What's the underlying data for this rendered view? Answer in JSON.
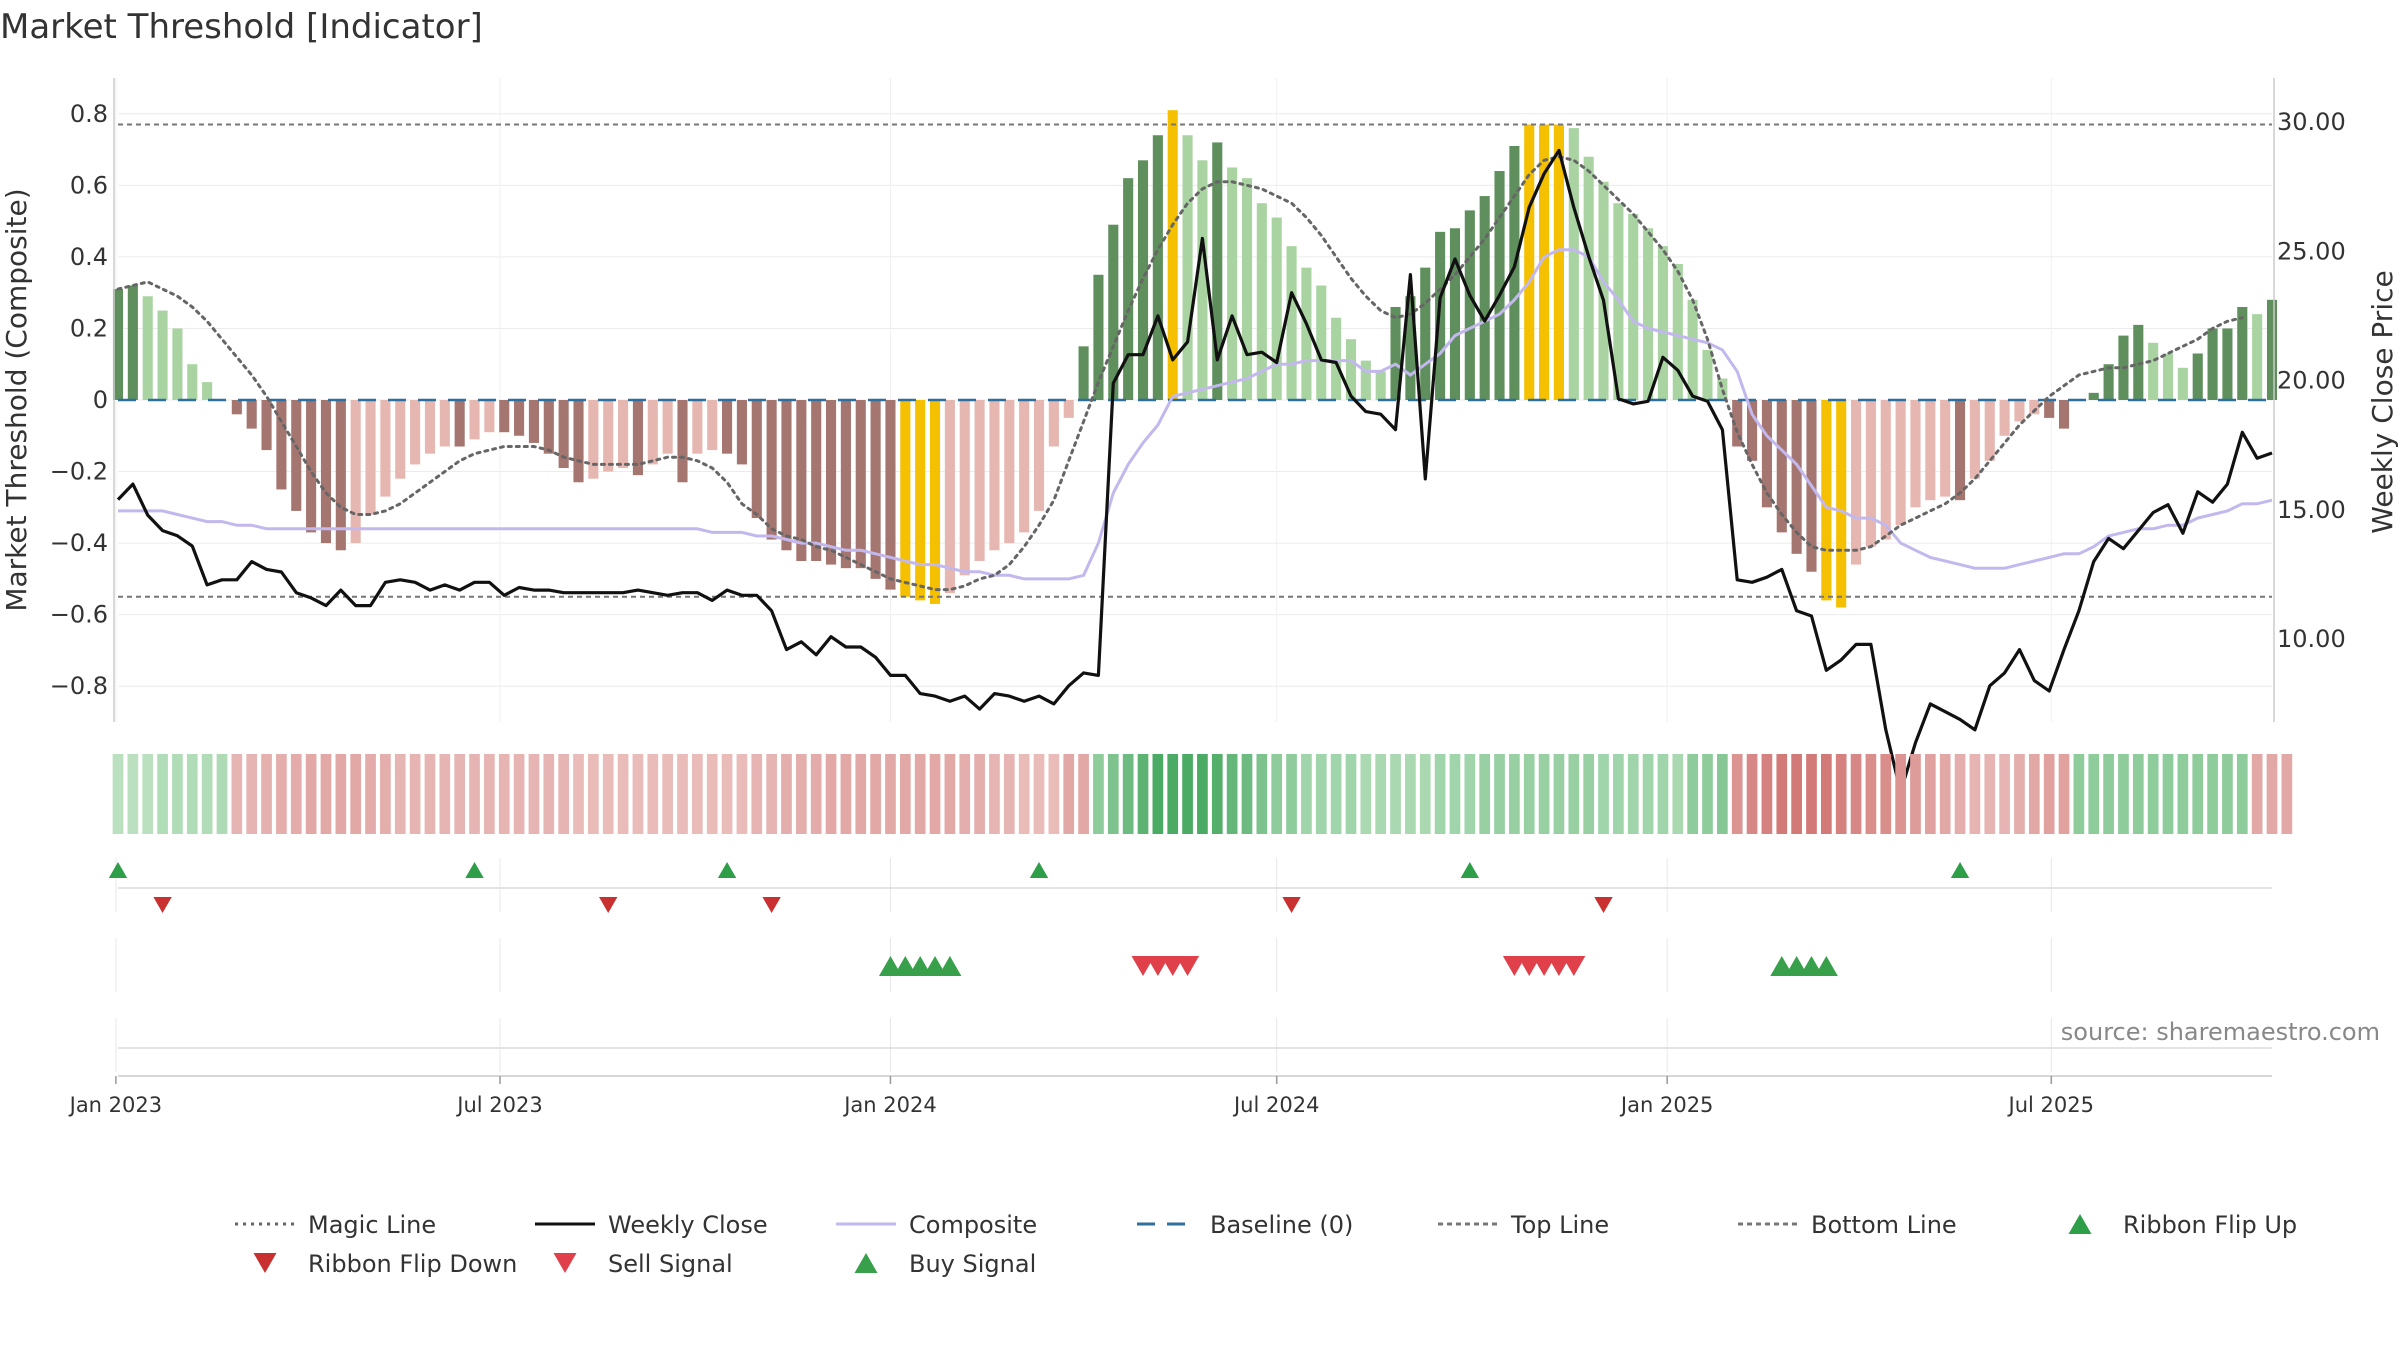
{
  "title": "Market Threshold [Indicator]",
  "source_label": "source: sharemaestro.com",
  "chart_data": {
    "type": "bar",
    "start_date": "2023-01-02",
    "y_left": {
      "label": "Market Threshold (Composite)",
      "ylim": [
        -0.9,
        0.9
      ],
      "ticks": [
        -0.8,
        -0.6,
        -0.4,
        -0.2,
        0,
        0.2,
        0.4,
        0.6,
        0.8
      ],
      "tick_labels": [
        "−0.8",
        "−0.6",
        "−0.4",
        "−0.2",
        "0",
        "0.2",
        "0.4",
        "0.6",
        "0.8"
      ]
    },
    "y_right": {
      "label": "Weekly Close Price",
      "ylim": [
        6.8,
        31.7
      ],
      "ticks": [
        10,
        15,
        20,
        25,
        30
      ],
      "tick_labels": [
        "10.00",
        "15.00",
        "20.00",
        "25.00",
        "30.00"
      ]
    },
    "x_ticks": [
      {
        "date": "2023-01-01",
        "label": "Jan 2023"
      },
      {
        "date": "2023-07-01",
        "label": "Jul 2023"
      },
      {
        "date": "2024-01-01",
        "label": "Jan 2024"
      },
      {
        "date": "2024-07-01",
        "label": "Jul 2024"
      },
      {
        "date": "2025-01-01",
        "label": "Jan 2025"
      },
      {
        "date": "2025-07-01",
        "label": "Jul 2025"
      }
    ],
    "top_line": 0.77,
    "bottom_line": -0.55,
    "grid": true,
    "composite_bars": [
      0.31,
      0.32,
      0.29,
      0.25,
      0.2,
      0.1,
      0.05,
      0,
      -0.04,
      -0.08,
      -0.14,
      -0.25,
      -0.31,
      -0.37,
      -0.4,
      -0.42,
      -0.4,
      -0.32,
      -0.27,
      -0.22,
      -0.18,
      -0.15,
      -0.13,
      -0.13,
      -0.11,
      -0.09,
      -0.09,
      -0.1,
      -0.12,
      -0.15,
      -0.19,
      -0.23,
      -0.22,
      -0.2,
      -0.19,
      -0.21,
      -0.18,
      -0.15,
      -0.23,
      -0.15,
      -0.14,
      -0.15,
      -0.18,
      -0.33,
      -0.39,
      -0.42,
      -0.45,
      -0.45,
      -0.46,
      -0.47,
      -0.47,
      -0.5,
      -0.53,
      -0.55,
      -0.56,
      -0.57,
      -0.54,
      -0.49,
      -0.45,
      -0.42,
      -0.4,
      -0.37,
      -0.31,
      -0.13,
      -0.05,
      0.15,
      0.35,
      0.49,
      0.62,
      0.67,
      0.74,
      0.81,
      0.74,
      0.67,
      0.72,
      0.65,
      0.62,
      0.55,
      0.51,
      0.43,
      0.37,
      0.32,
      0.23,
      0.17,
      0.11,
      0.08,
      0.26,
      0.29,
      0.37,
      0.47,
      0.48,
      0.53,
      0.57,
      0.64,
      0.71,
      0.77,
      0.77,
      0.77,
      0.76,
      0.68,
      0.61,
      0.55,
      0.52,
      0.48,
      0.43,
      0.38,
      0.28,
      0.14,
      0.06,
      -0.13,
      -0.17,
      -0.3,
      -0.37,
      -0.43,
      -0.48,
      -0.56,
      -0.58,
      -0.46,
      -0.41,
      -0.39,
      -0.35,
      -0.3,
      -0.28,
      -0.27,
      -0.28,
      -0.22,
      -0.17,
      -0.1,
      -0.06,
      -0.04,
      -0.05,
      -0.08,
      0,
      0.02,
      0.1,
      0.18,
      0.21,
      0.16,
      0.13,
      0.09,
      0.13,
      0.2,
      0.2,
      0.26,
      0.24,
      0.28
    ],
    "weekly_close": [
      15.4,
      16.0,
      14.8,
      14.2,
      14.0,
      13.6,
      12.1,
      12.3,
      12.3,
      13.0,
      12.7,
      12.6,
      11.8,
      11.6,
      11.3,
      11.9,
      11.3,
      11.3,
      12.2,
      12.3,
      12.2,
      11.9,
      12.1,
      11.9,
      12.2,
      12.2,
      11.7,
      12.0,
      11.9,
      11.9,
      11.8,
      11.8,
      11.8,
      11.8,
      11.8,
      11.9,
      11.8,
      11.7,
      11.8,
      11.8,
      11.5,
      11.9,
      11.7,
      11.7,
      11.1,
      9.6,
      9.9,
      9.4,
      10.1,
      9.7,
      9.7,
      9.3,
      8.6,
      8.6,
      7.9,
      7.8,
      7.6,
      7.8,
      7.3,
      7.9,
      7.8,
      7.6,
      7.8,
      7.5,
      8.2,
      8.7,
      8.6,
      19.9,
      21.0,
      21.0,
      22.5,
      20.8,
      21.5,
      25.5,
      20.8,
      22.5,
      21.0,
      21.1,
      20.7,
      23.4,
      22.2,
      20.8,
      20.7,
      19.4,
      18.8,
      18.7,
      18.1,
      24.1,
      16.2,
      23.2,
      24.7,
      23.3,
      22.3,
      23.3,
      24.4,
      26.7,
      28.0,
      28.9,
      26.7,
      24.8,
      23.1,
      19.3,
      19.1,
      19.2,
      20.9,
      20.4,
      19.4,
      19.2,
      18.1,
      12.3,
      12.2,
      12.4,
      12.7,
      11.1,
      10.9,
      8.8,
      9.2,
      9.8,
      9.8,
      6.5,
      4.1,
      6.0,
      7.5,
      7.2,
      6.9,
      6.5,
      8.2,
      8.7,
      9.6,
      8.4,
      8.0,
      9.6,
      11.1,
      13.0,
      13.9,
      13.5,
      14.2,
      14.9,
      15.2,
      14.1,
      15.7,
      15.3,
      16.0,
      18.0,
      17.0,
      17.2
    ],
    "composite_line": [
      -0.31,
      -0.31,
      -0.31,
      -0.31,
      -0.32,
      -0.33,
      -0.34,
      -0.34,
      -0.35,
      -0.35,
      -0.36,
      -0.36,
      -0.36,
      -0.36,
      -0.36,
      -0.36,
      -0.36,
      -0.36,
      -0.36,
      -0.36,
      -0.36,
      -0.36,
      -0.36,
      -0.36,
      -0.36,
      -0.36,
      -0.36,
      -0.36,
      -0.36,
      -0.36,
      -0.36,
      -0.36,
      -0.36,
      -0.36,
      -0.36,
      -0.36,
      -0.36,
      -0.36,
      -0.36,
      -0.36,
      -0.37,
      -0.37,
      -0.37,
      -0.38,
      -0.38,
      -0.39,
      -0.4,
      -0.4,
      -0.41,
      -0.42,
      -0.42,
      -0.43,
      -0.44,
      -0.45,
      -0.46,
      -0.46,
      -0.47,
      -0.48,
      -0.48,
      -0.49,
      -0.49,
      -0.5,
      -0.5,
      -0.5,
      -0.5,
      -0.49,
      -0.4,
      -0.26,
      -0.18,
      -0.12,
      -0.07,
      0.01,
      0.02,
      0.03,
      0.04,
      0.05,
      0.06,
      0.08,
      0.1,
      0.1,
      0.11,
      0.11,
      0.11,
      0.11,
      0.08,
      0.08,
      0.1,
      0.07,
      0.1,
      0.13,
      0.18,
      0.2,
      0.22,
      0.24,
      0.28,
      0.33,
      0.4,
      0.42,
      0.42,
      0.4,
      0.33,
      0.28,
      0.22,
      0.2,
      0.19,
      0.18,
      0.17,
      0.16,
      0.14,
      0.08,
      -0.04,
      -0.1,
      -0.14,
      -0.18,
      -0.24,
      -0.3,
      -0.31,
      -0.33,
      -0.33,
      -0.35,
      -0.4,
      -0.42,
      -0.44,
      -0.45,
      -0.46,
      -0.47,
      -0.47,
      -0.47,
      -0.46,
      -0.45,
      -0.44,
      -0.43,
      -0.43,
      -0.41,
      -0.38,
      -0.37,
      -0.36,
      -0.36,
      -0.35,
      -0.35,
      -0.33,
      -0.32,
      -0.31,
      -0.29,
      -0.29,
      -0.28
    ],
    "magic_line": [
      0.31,
      0.32,
      0.33,
      0.31,
      0.29,
      0.26,
      0.22,
      0.17,
      0.12,
      0.07,
      0.01,
      -0.06,
      -0.13,
      -0.2,
      -0.26,
      -0.3,
      -0.32,
      -0.32,
      -0.31,
      -0.29,
      -0.26,
      -0.23,
      -0.2,
      -0.17,
      -0.15,
      -0.14,
      -0.13,
      -0.13,
      -0.13,
      -0.14,
      -0.16,
      -0.17,
      -0.18,
      -0.18,
      -0.18,
      -0.18,
      -0.17,
      -0.16,
      -0.16,
      -0.17,
      -0.19,
      -0.23,
      -0.29,
      -0.32,
      -0.36,
      -0.38,
      -0.39,
      -0.41,
      -0.42,
      -0.44,
      -0.46,
      -0.48,
      -0.5,
      -0.51,
      -0.52,
      -0.53,
      -0.53,
      -0.52,
      -0.5,
      -0.49,
      -0.46,
      -0.41,
      -0.35,
      -0.28,
      -0.17,
      -0.06,
      0.05,
      0.15,
      0.25,
      0.34,
      0.42,
      0.49,
      0.55,
      0.59,
      0.61,
      0.61,
      0.6,
      0.59,
      0.57,
      0.55,
      0.51,
      0.46,
      0.4,
      0.34,
      0.29,
      0.25,
      0.23,
      0.24,
      0.27,
      0.31,
      0.35,
      0.4,
      0.45,
      0.51,
      0.57,
      0.63,
      0.67,
      0.68,
      0.67,
      0.64,
      0.6,
      0.56,
      0.52,
      0.47,
      0.42,
      0.36,
      0.28,
      0.17,
      0.03,
      -0.09,
      -0.18,
      -0.26,
      -0.32,
      -0.37,
      -0.41,
      -0.42,
      -0.42,
      -0.42,
      -0.41,
      -0.38,
      -0.35,
      -0.33,
      -0.31,
      -0.29,
      -0.26,
      -0.22,
      -0.17,
      -0.12,
      -0.07,
      -0.03,
      0.01,
      0.04,
      0.07,
      0.08,
      0.09,
      0.09,
      0.1,
      0.11,
      0.13,
      0.15,
      0.17,
      0.2,
      0.22,
      0.23
    ],
    "ribbon": [
      0.25,
      0.25,
      0.25,
      0.3,
      0.3,
      0.3,
      0.3,
      0.32,
      0.35,
      0.35,
      0.38,
      0.4,
      0.42,
      0.45,
      0.45,
      0.45,
      0.45,
      0.42,
      0.4,
      0.35,
      0.35,
      0.35,
      0.35,
      0.35,
      0.35,
      0.35,
      0.35,
      0.35,
      0.35,
      0.35,
      0.35,
      0.3,
      0.3,
      0.3,
      0.3,
      0.3,
      0.3,
      0.3,
      0.3,
      0.3,
      0.3,
      0.3,
      0.3,
      0.35,
      0.35,
      0.4,
      0.4,
      0.42,
      0.45,
      0.45,
      0.45,
      0.45,
      0.45,
      0.45,
      0.45,
      0.45,
      0.45,
      0.4,
      0.4,
      0.35,
      0.35,
      0.3,
      0.3,
      0.3,
      0.45,
      0.45,
      0.5,
      0.6,
      0.7,
      0.8,
      0.9,
      0.9,
      0.9,
      0.9,
      0.85,
      0.75,
      0.7,
      0.6,
      0.5,
      0.5,
      0.4,
      0.4,
      0.4,
      0.4,
      0.35,
      0.35,
      0.35,
      0.35,
      0.35,
      0.4,
      0.4,
      0.4,
      0.45,
      0.45,
      0.45,
      0.45,
      0.45,
      0.45,
      0.45,
      0.45,
      0.4,
      0.4,
      0.4,
      0.4,
      0.4,
      0.35,
      0.5,
      0.5,
      0.55,
      0.6,
      0.7,
      0.75,
      0.8,
      0.8,
      0.8,
      0.8,
      0.75,
      0.7,
      0.65,
      0.65,
      0.6,
      0.55,
      0.5,
      0.45,
      0.4,
      0.35,
      0.35,
      0.35,
      0.4,
      0.45,
      0.5,
      0.5,
      0.5,
      0.5,
      0.5,
      0.5,
      0.5,
      0.5,
      0.5,
      0.5,
      0.5,
      0.5,
      0.5,
      0.5,
      0.45,
      0.45,
      0.45
    ],
    "ribbon_flip_up": [
      "2023-01-02",
      "2023-06-19",
      "2023-10-16",
      "2024-03-11",
      "2024-09-30",
      "2025-05-19"
    ],
    "ribbon_flip_down": [
      "2023-01-23",
      "2023-08-21",
      "2023-11-06",
      "2024-07-08",
      "2024-12-02"
    ],
    "buy_signal": [
      "2024-01-01",
      "2024-01-08",
      "2024-01-15",
      "2024-01-22",
      "2024-01-29",
      "2025-02-24",
      "2025-03-03",
      "2025-03-10",
      "2025-03-17"
    ],
    "sell_signal": [
      "2024-04-29",
      "2024-05-06",
      "2024-05-13",
      "2024-05-20",
      "2024-10-21",
      "2024-10-28",
      "2024-11-04",
      "2024-11-11",
      "2024-11-18"
    ],
    "legend": [
      {
        "label": "Magic Line",
        "kind": "dotted",
        "color": "#666666"
      },
      {
        "label": "Weekly Close",
        "kind": "solid",
        "color": "#111111"
      },
      {
        "label": "Composite",
        "kind": "solid",
        "color": "#c3b8ee"
      },
      {
        "label": "Baseline (0)",
        "kind": "dashed",
        "color": "#2e6f9e"
      },
      {
        "label": "Top Line",
        "kind": "finedash",
        "color": "#777777"
      },
      {
        "label": "Bottom Line",
        "kind": "finedash",
        "color": "#777777"
      },
      {
        "label": "Ribbon Flip Up",
        "kind": "tri-up",
        "color": "#2e9e48"
      },
      {
        "label": "Ribbon Flip Down",
        "kind": "tri-down",
        "color": "#c93030"
      },
      {
        "label": "Sell Signal",
        "kind": "tri-down",
        "color": "#e0404a"
      },
      {
        "label": "Buy Signal",
        "kind": "tri-up",
        "color": "#38a04a"
      }
    ],
    "colors": {
      "strong_green": "#5f8f5c",
      "light_green": "#a9d4a2",
      "strong_red": "#a57570",
      "light_red": "#e6b6b0",
      "extreme": "#f5c000",
      "baseline": "#2e6f9e"
    }
  }
}
